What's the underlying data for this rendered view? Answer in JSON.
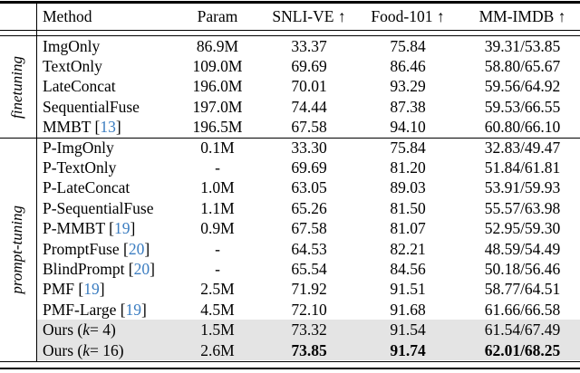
{
  "colors": {
    "citation_blue": "#3b7dc1",
    "highlight_gray": "#e4e4e4",
    "rule_black": "#000000"
  },
  "table": {
    "columns": [
      "Method",
      "Param",
      "SNLI-VE ↑",
      "Food-101 ↑",
      "MM-IMDB ↑"
    ],
    "groups": [
      {
        "label": "finetuning",
        "rows": [
          {
            "method": [
              {
                "t": "ImgOnly"
              }
            ],
            "param": "86.9M",
            "values": [
              "33.37",
              "75.84",
              "39.31/53.85"
            ],
            "bold_values": false,
            "highlight": false
          },
          {
            "method": [
              {
                "t": "TextOnly"
              }
            ],
            "param": "109.0M",
            "values": [
              "69.69",
              "86.46",
              "58.80/65.67"
            ],
            "bold_values": false,
            "highlight": false
          },
          {
            "method": [
              {
                "t": "LateConcat"
              }
            ],
            "param": "196.0M",
            "values": [
              "70.01",
              "93.29",
              "59.56/64.92"
            ],
            "bold_values": false,
            "highlight": false
          },
          {
            "method": [
              {
                "t": "SequentialFuse"
              }
            ],
            "param": "197.0M",
            "values": [
              "74.44",
              "87.38",
              "59.53/66.55"
            ],
            "bold_values": false,
            "highlight": false
          },
          {
            "method": [
              {
                "t": "MMBT ["
              },
              {
                "t": "13",
                "s": "cite"
              },
              {
                "t": "]"
              }
            ],
            "param": "196.5M",
            "values": [
              "67.58",
              "94.10",
              "60.80/66.10"
            ],
            "bold_values": false,
            "highlight": false
          }
        ]
      },
      {
        "label": "prompt-tuning",
        "rows": [
          {
            "method": [
              {
                "t": "P-ImgOnly"
              }
            ],
            "param": "0.1M",
            "values": [
              "33.30",
              "75.84",
              "32.83/49.47"
            ],
            "bold_values": false,
            "highlight": false
          },
          {
            "method": [
              {
                "t": "P-TextOnly"
              }
            ],
            "param": "-",
            "values": [
              "69.69",
              "81.20",
              "51.84/61.81"
            ],
            "bold_values": false,
            "highlight": false
          },
          {
            "method": [
              {
                "t": "P-LateConcat"
              }
            ],
            "param": "1.0M",
            "values": [
              "63.05",
              "89.03",
              "53.91/59.93"
            ],
            "bold_values": false,
            "highlight": false
          },
          {
            "method": [
              {
                "t": "P-SequentialFuse"
              }
            ],
            "param": "1.1M",
            "values": [
              "65.26",
              "81.50",
              "55.57/63.98"
            ],
            "bold_values": false,
            "highlight": false
          },
          {
            "method": [
              {
                "t": "P-MMBT ["
              },
              {
                "t": "19",
                "s": "cite"
              },
              {
                "t": "]"
              }
            ],
            "param": "0.9M",
            "values": [
              "67.58",
              "81.07",
              "52.95/59.30"
            ],
            "bold_values": false,
            "highlight": false
          },
          {
            "method": [
              {
                "t": "PromptFuse ["
              },
              {
                "t": "20",
                "s": "cite"
              },
              {
                "t": "]"
              }
            ],
            "param": "-",
            "values": [
              "64.53",
              "82.21",
              "48.59/54.49"
            ],
            "bold_values": false,
            "highlight": false
          },
          {
            "method": [
              {
                "t": "BlindPrompt ["
              },
              {
                "t": "20",
                "s": "cite"
              },
              {
                "t": "]"
              }
            ],
            "param": "-",
            "values": [
              "65.54",
              "84.56",
              "50.18/56.46"
            ],
            "bold_values": false,
            "highlight": false
          },
          {
            "method": [
              {
                "t": "PMF ["
              },
              {
                "t": "19",
                "s": "cite"
              },
              {
                "t": "]"
              }
            ],
            "param": "2.5M",
            "values": [
              "71.92",
              "91.51",
              "58.77/64.51"
            ],
            "bold_values": false,
            "highlight": false
          },
          {
            "method": [
              {
                "t": "PMF-Large ["
              },
              {
                "t": "19",
                "s": "cite"
              },
              {
                "t": "]"
              }
            ],
            "param": "4.5M",
            "values": [
              "72.10",
              "91.68",
              "61.66/66.58"
            ],
            "bold_values": false,
            "highlight": false
          },
          {
            "method": [
              {
                "t": "Ours ("
              },
              {
                "t": "k",
                "s": "italic"
              },
              {
                "t": " = 4)"
              }
            ],
            "param": "1.5M",
            "values": [
              "73.32",
              "91.54",
              "61.54/67.49"
            ],
            "bold_values": false,
            "highlight": true
          },
          {
            "method": [
              {
                "t": "Ours ("
              },
              {
                "t": "k",
                "s": "italic"
              },
              {
                "t": " = 16)"
              }
            ],
            "param": "2.6M",
            "values": [
              "73.85",
              "91.74",
              "62.01/68.25"
            ],
            "bold_values": true,
            "highlight": true
          }
        ]
      }
    ]
  }
}
